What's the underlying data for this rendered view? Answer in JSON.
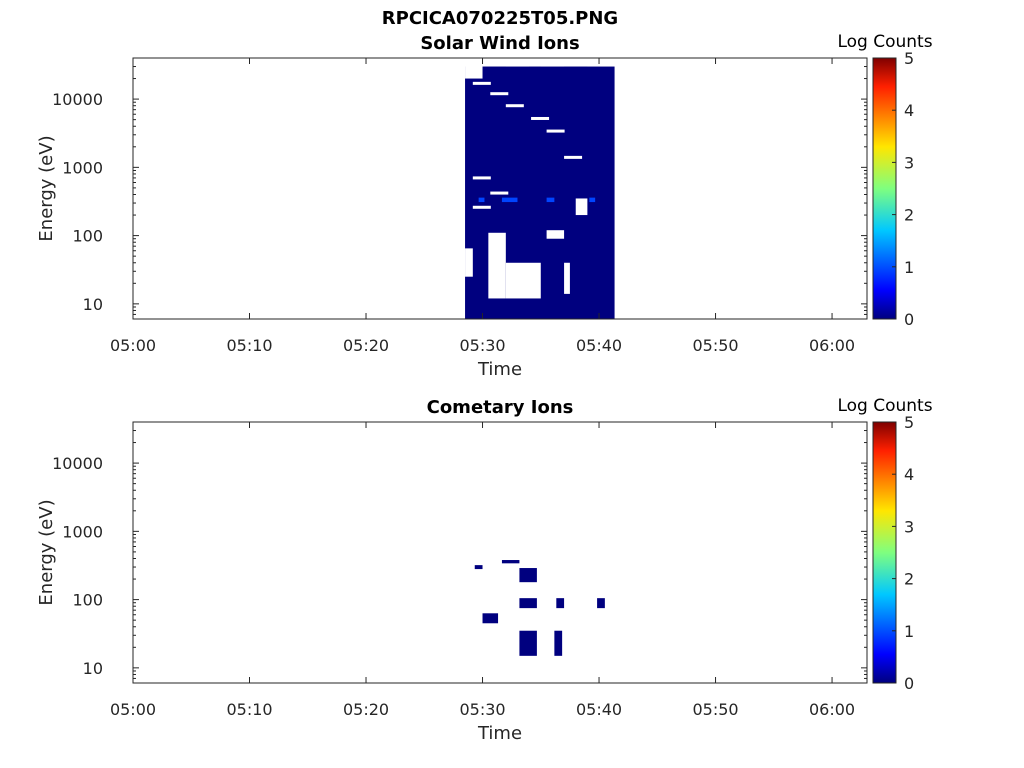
{
  "figure_title": "RPCICA070225T05.PNG",
  "colorbar": {
    "label": "Log Counts",
    "ticks": [
      "0",
      "1",
      "2",
      "3",
      "4",
      "5"
    ],
    "range": [
      0,
      5
    ]
  },
  "chart_data": [
    {
      "type": "heatmap",
      "title": "Solar Wind Ions",
      "xlabel": "Time",
      "ylabel": "Energy (eV)",
      "x_ticks": [
        "05:00",
        "05:10",
        "05:20",
        "05:30",
        "05:40",
        "05:50",
        "06:00"
      ],
      "x_range": [
        "05:00",
        "06:03"
      ],
      "y_scale": "log",
      "y_ticks": [
        "10",
        "100",
        "1000",
        "10000"
      ],
      "y_range": [
        6,
        40000
      ],
      "cells": [
        {
          "t0": "05:28:30",
          "t1": "05:41:20",
          "e0": 6,
          "e1": 30000,
          "v": 0
        }
      ],
      "holes": [
        {
          "t0": "05:28:30",
          "t1": "05:30:00",
          "e0": 20000,
          "e1": 40000
        },
        {
          "t0": "05:28:30",
          "t1": "05:29:10",
          "e0": 25,
          "e1": 65
        },
        {
          "t0": "05:30:30",
          "t1": "05:32:00",
          "e0": 12,
          "e1": 110
        },
        {
          "t0": "05:32:00",
          "t1": "05:35:00",
          "e0": 12,
          "e1": 40
        },
        {
          "t0": "05:35:30",
          "t1": "05:37:00",
          "e0": 90,
          "e1": 120
        },
        {
          "t0": "05:37:00",
          "t1": "05:37:30",
          "e0": 14,
          "e1": 40
        },
        {
          "t0": "05:38:00",
          "t1": "05:39:00",
          "e0": 200,
          "e1": 350
        },
        {
          "t0": "05:32:00",
          "t1": "05:34:00",
          "e0": 30000,
          "e1": 40000
        },
        {
          "t0": "05:35:00",
          "t1": "05:37:00",
          "e0": 30000,
          "e1": 40000
        },
        {
          "t0": "05:39:00",
          "t1": "05:41:20",
          "e0": 30000,
          "e1": 40000
        }
      ],
      "highlights": [
        {
          "t0": "05:29:40",
          "t1": "05:30:10",
          "e0": 310,
          "e1": 360,
          "v": 1
        },
        {
          "t0": "05:31:40",
          "t1": "05:33:00",
          "e0": 310,
          "e1": 360,
          "v": 1
        },
        {
          "t0": "05:35:30",
          "t1": "05:36:10",
          "e0": 310,
          "e1": 360,
          "v": 1
        },
        {
          "t0": "05:39:10",
          "t1": "05:39:40",
          "e0": 310,
          "e1": 360,
          "v": 1
        }
      ],
      "legend_position": "right colorbar"
    },
    {
      "type": "heatmap",
      "title": "Cometary Ions",
      "xlabel": "Time",
      "ylabel": "Energy (eV)",
      "x_ticks": [
        "05:00",
        "05:10",
        "05:20",
        "05:30",
        "05:40",
        "05:50",
        "06:00"
      ],
      "x_range": [
        "05:00",
        "06:03"
      ],
      "y_scale": "log",
      "y_ticks": [
        "10",
        "100",
        "1000",
        "10000"
      ],
      "y_range": [
        6,
        40000
      ],
      "cells": [
        {
          "t0": "05:29:20",
          "t1": "05:30:00",
          "e0": 280,
          "e1": 320,
          "v": 0
        },
        {
          "t0": "05:31:40",
          "t1": "05:33:10",
          "e0": 340,
          "e1": 380,
          "v": 0
        },
        {
          "t0": "05:33:10",
          "t1": "05:34:40",
          "e0": 180,
          "e1": 290,
          "v": 0
        },
        {
          "t0": "05:33:10",
          "t1": "05:34:40",
          "e0": 75,
          "e1": 105,
          "v": 0
        },
        {
          "t0": "05:36:20",
          "t1": "05:37:00",
          "e0": 75,
          "e1": 105,
          "v": 0
        },
        {
          "t0": "05:39:50",
          "t1": "05:40:30",
          "e0": 75,
          "e1": 105,
          "v": 0
        },
        {
          "t0": "05:30:00",
          "t1": "05:31:20",
          "e0": 45,
          "e1": 63,
          "v": 0
        },
        {
          "t0": "05:33:10",
          "t1": "05:34:40",
          "e0": 15,
          "e1": 35,
          "v": 0
        },
        {
          "t0": "05:36:10",
          "t1": "05:36:50",
          "e0": 15,
          "e1": 35,
          "v": 0
        }
      ],
      "legend_position": "right colorbar"
    }
  ]
}
